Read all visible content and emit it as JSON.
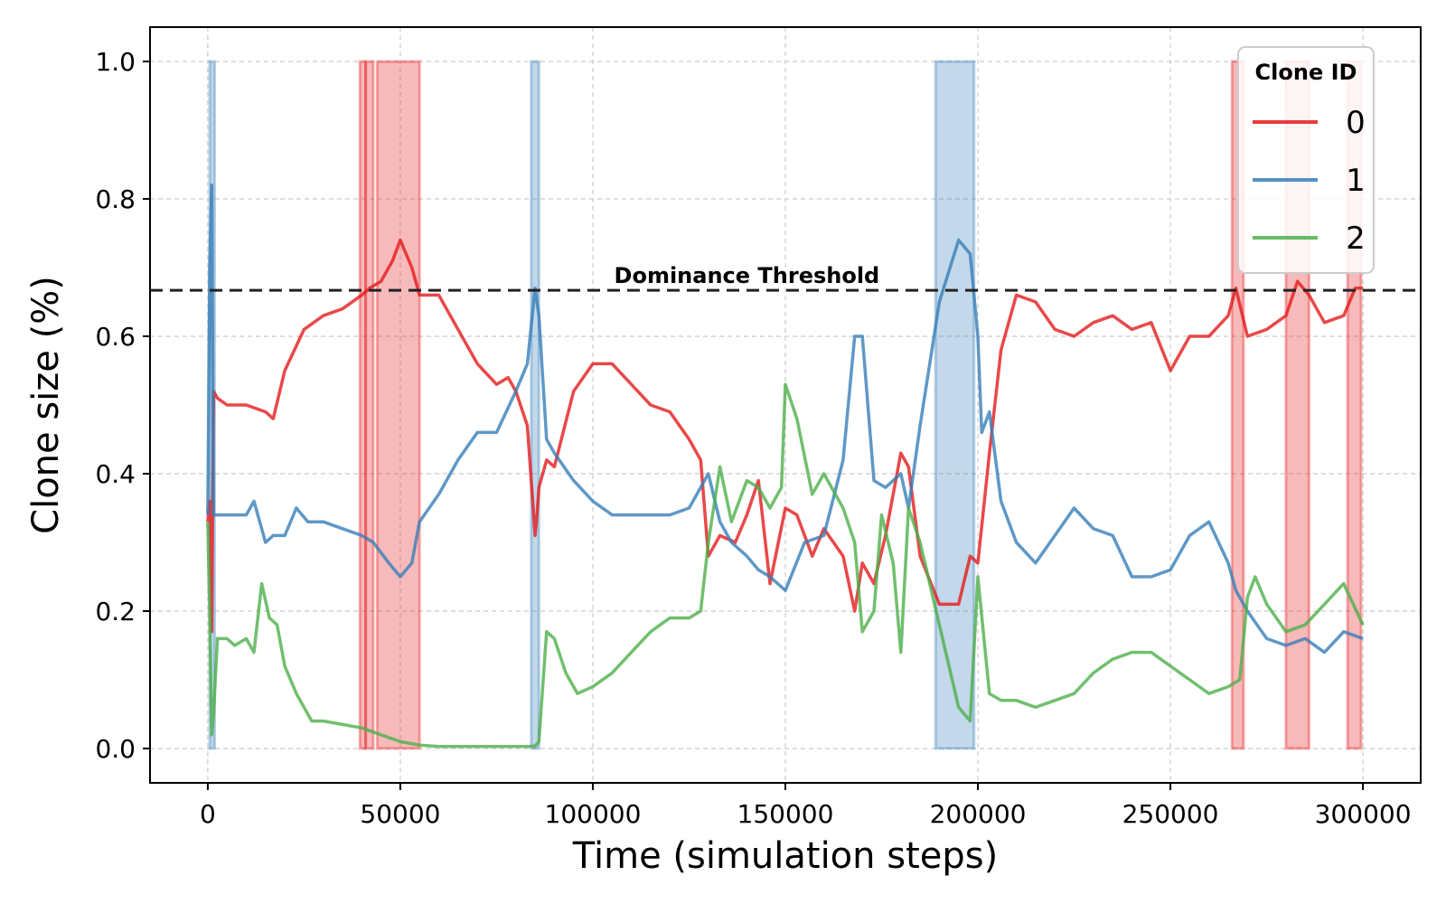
{
  "chart_data": {
    "type": "line",
    "xlabel": "Time (simulation steps)",
    "ylabel": "Clone size (%)",
    "xlim": [
      -15000,
      315000
    ],
    "ylim": [
      -0.05,
      1.05
    ],
    "xticks": [
      0,
      50000,
      100000,
      150000,
      200000,
      250000,
      300000
    ],
    "xtick_labels": [
      "0",
      "50000",
      "100000",
      "150000",
      "200000",
      "250000",
      "300000"
    ],
    "yticks": [
      0.0,
      0.2,
      0.4,
      0.6,
      0.8,
      1.0
    ],
    "ytick_labels": [
      "0.0",
      "0.2",
      "0.4",
      "0.6",
      "0.8",
      "1.0"
    ],
    "grid": true,
    "legend": {
      "title": "Clone ID",
      "placement": "top-right"
    },
    "threshold": {
      "value": 0.667,
      "label": "Dominance Threshold",
      "style": "dashed"
    },
    "series": [
      {
        "name": "0",
        "color": "#e41a1c",
        "x": [
          0,
          500,
          1000,
          1500,
          2500,
          5000,
          10000,
          15000,
          17000,
          20000,
          25000,
          30000,
          35000,
          40000,
          42000,
          45000,
          48000,
          50000,
          53000,
          55000,
          60000,
          65000,
          70000,
          75000,
          78000,
          80000,
          83000,
          85000,
          85500,
          86000,
          88000,
          90000,
          95000,
          100000,
          105000,
          110000,
          115000,
          120000,
          125000,
          128000,
          130000,
          133000,
          137000,
          140000,
          143000,
          146000,
          150000,
          153000,
          157000,
          160000,
          165000,
          168000,
          170000,
          173000,
          176000,
          180000,
          182000,
          185000,
          190000,
          195000,
          198000,
          200000,
          203000,
          206000,
          210000,
          215000,
          220000,
          225000,
          230000,
          235000,
          240000,
          245000,
          250000,
          255000,
          260000,
          265000,
          267000,
          270000,
          275000,
          280000,
          283000,
          286000,
          290000,
          295000,
          298000,
          300000
        ],
        "y": [
          0.33,
          0.36,
          0.17,
          0.52,
          0.51,
          0.5,
          0.5,
          0.49,
          0.48,
          0.55,
          0.61,
          0.63,
          0.64,
          0.66,
          0.67,
          0.68,
          0.71,
          0.74,
          0.7,
          0.66,
          0.66,
          0.61,
          0.56,
          0.53,
          0.54,
          0.52,
          0.47,
          0.31,
          0.34,
          0.38,
          0.42,
          0.41,
          0.52,
          0.56,
          0.56,
          0.53,
          0.5,
          0.49,
          0.45,
          0.42,
          0.28,
          0.31,
          0.3,
          0.34,
          0.39,
          0.24,
          0.35,
          0.34,
          0.28,
          0.32,
          0.28,
          0.2,
          0.27,
          0.24,
          0.31,
          0.43,
          0.41,
          0.28,
          0.21,
          0.21,
          0.28,
          0.27,
          0.43,
          0.58,
          0.66,
          0.65,
          0.61,
          0.6,
          0.62,
          0.63,
          0.61,
          0.62,
          0.55,
          0.6,
          0.6,
          0.63,
          0.67,
          0.6,
          0.61,
          0.63,
          0.68,
          0.66,
          0.62,
          0.63,
          0.67,
          0.67
        ]
      },
      {
        "name": "1",
        "color": "#377eb8",
        "x": [
          0,
          500,
          1000,
          1500,
          2500,
          5000,
          10000,
          12000,
          15000,
          17000,
          20000,
          23000,
          26000,
          30000,
          35000,
          40000,
          43000,
          47000,
          50000,
          53000,
          55000,
          60000,
          65000,
          70000,
          75000,
          80000,
          83000,
          85000,
          86000,
          88000,
          90000,
          95000,
          100000,
          105000,
          110000,
          115000,
          120000,
          125000,
          128000,
          130000,
          133000,
          136000,
          140000,
          143000,
          146000,
          150000,
          155000,
          160000,
          165000,
          168000,
          170000,
          173000,
          176000,
          180000,
          182000,
          185000,
          190000,
          195000,
          198000,
          200000,
          201000,
          203000,
          206000,
          210000,
          215000,
          220000,
          225000,
          230000,
          235000,
          240000,
          245000,
          250000,
          255000,
          260000,
          265000,
          267000,
          270000,
          275000,
          280000,
          285000,
          290000,
          295000,
          300000
        ],
        "y": [
          0.34,
          0.7,
          0.82,
          0.34,
          0.34,
          0.34,
          0.34,
          0.36,
          0.3,
          0.31,
          0.31,
          0.35,
          0.33,
          0.33,
          0.32,
          0.31,
          0.3,
          0.27,
          0.25,
          0.27,
          0.33,
          0.37,
          0.42,
          0.46,
          0.46,
          0.52,
          0.56,
          0.67,
          0.63,
          0.45,
          0.43,
          0.39,
          0.36,
          0.34,
          0.34,
          0.34,
          0.34,
          0.35,
          0.38,
          0.4,
          0.33,
          0.3,
          0.28,
          0.26,
          0.25,
          0.23,
          0.3,
          0.31,
          0.42,
          0.6,
          0.6,
          0.39,
          0.38,
          0.4,
          0.35,
          0.47,
          0.65,
          0.74,
          0.72,
          0.6,
          0.46,
          0.49,
          0.36,
          0.3,
          0.27,
          0.31,
          0.35,
          0.32,
          0.31,
          0.25,
          0.25,
          0.26,
          0.31,
          0.33,
          0.27,
          0.23,
          0.2,
          0.16,
          0.15,
          0.16,
          0.14,
          0.17,
          0.16
        ]
      },
      {
        "name": "2",
        "color": "#4daf4a",
        "x": [
          0,
          500,
          1000,
          1500,
          2500,
          5000,
          7000,
          10000,
          12000,
          14000,
          16000,
          18000,
          20000,
          23000,
          27000,
          30000,
          35000,
          40000,
          45000,
          50000,
          55000,
          60000,
          70000,
          80000,
          84000,
          85000,
          86000,
          88000,
          90000,
          93000,
          96000,
          100000,
          105000,
          110000,
          115000,
          120000,
          125000,
          128000,
          130000,
          133000,
          136000,
          140000,
          143000,
          146000,
          149000,
          150000,
          153000,
          157000,
          160000,
          165000,
          168000,
          170000,
          173000,
          175000,
          178000,
          180000,
          182000,
          185000,
          190000,
          195000,
          198000,
          200000,
          203000,
          206000,
          210000,
          215000,
          220000,
          225000,
          230000,
          235000,
          240000,
          245000,
          250000,
          255000,
          260000,
          265000,
          268000,
          270000,
          272000,
          275000,
          280000,
          285000,
          290000,
          295000,
          300000
        ],
        "y": [
          0.33,
          0.2,
          0.02,
          0.05,
          0.16,
          0.16,
          0.15,
          0.16,
          0.14,
          0.24,
          0.19,
          0.18,
          0.12,
          0.08,
          0.04,
          0.04,
          0.035,
          0.03,
          0.02,
          0.01,
          0.005,
          0.003,
          0.003,
          0.003,
          0.003,
          0.004,
          0.01,
          0.17,
          0.16,
          0.11,
          0.08,
          0.09,
          0.11,
          0.14,
          0.17,
          0.19,
          0.19,
          0.2,
          0.3,
          0.41,
          0.33,
          0.39,
          0.38,
          0.35,
          0.38,
          0.53,
          0.48,
          0.37,
          0.4,
          0.35,
          0.3,
          0.17,
          0.2,
          0.34,
          0.27,
          0.14,
          0.35,
          0.3,
          0.18,
          0.06,
          0.04,
          0.25,
          0.08,
          0.07,
          0.07,
          0.06,
          0.07,
          0.08,
          0.11,
          0.13,
          0.14,
          0.14,
          0.12,
          0.1,
          0.08,
          0.09,
          0.1,
          0.22,
          0.25,
          0.21,
          0.17,
          0.18,
          0.21,
          0.24,
          0.18
        ]
      }
    ],
    "dominance_periods": [
      {
        "clone": "0",
        "start": 39500,
        "end": 41000
      },
      {
        "clone": "0",
        "start": 41000,
        "end": 43000
      },
      {
        "clone": "0",
        "start": 44000,
        "end": 55000
      },
      {
        "clone": "0",
        "start": 266000,
        "end": 269000
      },
      {
        "clone": "0",
        "start": 280000,
        "end": 286000
      },
      {
        "clone": "0",
        "start": 296000,
        "end": 299500
      },
      {
        "clone": "1",
        "start": 500,
        "end": 1800
      },
      {
        "clone": "1",
        "start": 84000,
        "end": 86000
      },
      {
        "clone": "1",
        "start": 189000,
        "end": 199000
      }
    ]
  }
}
